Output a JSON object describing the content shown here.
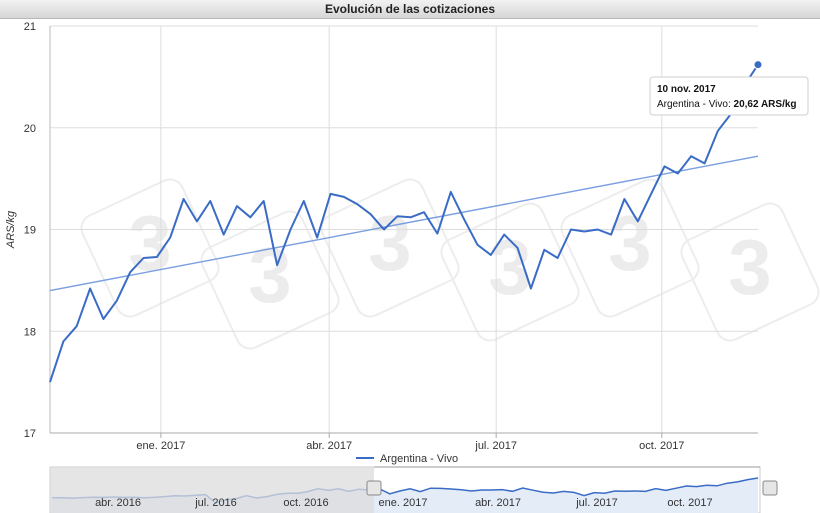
{
  "title": "Evolución de las cotizaciones",
  "chart_data": {
    "type": "line",
    "title": "Evolución de las cotizaciones",
    "xlabel": "",
    "ylabel": "ARS/kg",
    "ylim": [
      17,
      21
    ],
    "yticks": [
      17,
      18,
      19,
      20,
      21
    ],
    "xticks": [
      "ene. 2017",
      "abr. 2017",
      "jul. 2017",
      "oct. 2017"
    ],
    "grid": true,
    "legend_position": "bottom",
    "series": [
      {
        "name": "Argentina - Vivo",
        "color": "#3a6cc6",
        "values": [
          17.5,
          17.9,
          18.05,
          18.42,
          18.12,
          18.3,
          18.58,
          18.72,
          18.73,
          18.92,
          19.3,
          19.08,
          19.28,
          18.95,
          19.23,
          19.12,
          19.28,
          18.65,
          19.0,
          19.28,
          18.92,
          19.35,
          19.32,
          19.25,
          19.15,
          19.0,
          19.13,
          19.12,
          19.17,
          18.96,
          19.37,
          19.1,
          18.85,
          18.75,
          18.95,
          18.82,
          18.42,
          18.8,
          18.72,
          19.0,
          18.98,
          19.0,
          18.95,
          19.3,
          19.08,
          19.35,
          19.62,
          19.55,
          19.72,
          19.65,
          19.97,
          20.14,
          20.42,
          20.62
        ]
      },
      {
        "name": "",
        "type": "trendline",
        "color": "#7a9fe0",
        "values": [
          18.4,
          19.72
        ]
      }
    ],
    "tooltip": {
      "date": "10 nov. 2017",
      "series": "Argentina - Vivo",
      "value": "20,62 ARS/kg"
    },
    "navigator": {
      "labels": [
        "abr. 2016",
        "jul. 2016",
        "oct. 2016",
        "ene. 2017",
        "abr. 2017",
        "jul. 2017",
        "oct. 2017"
      ],
      "selected_range": [
        "ene. 2017",
        "oct. 2017"
      ]
    }
  },
  "colors": {
    "series": "#3a6cc6",
    "trend": "#7a9fe0",
    "grid": "#dddddd",
    "navigator_mask": "#dcdcdc"
  }
}
